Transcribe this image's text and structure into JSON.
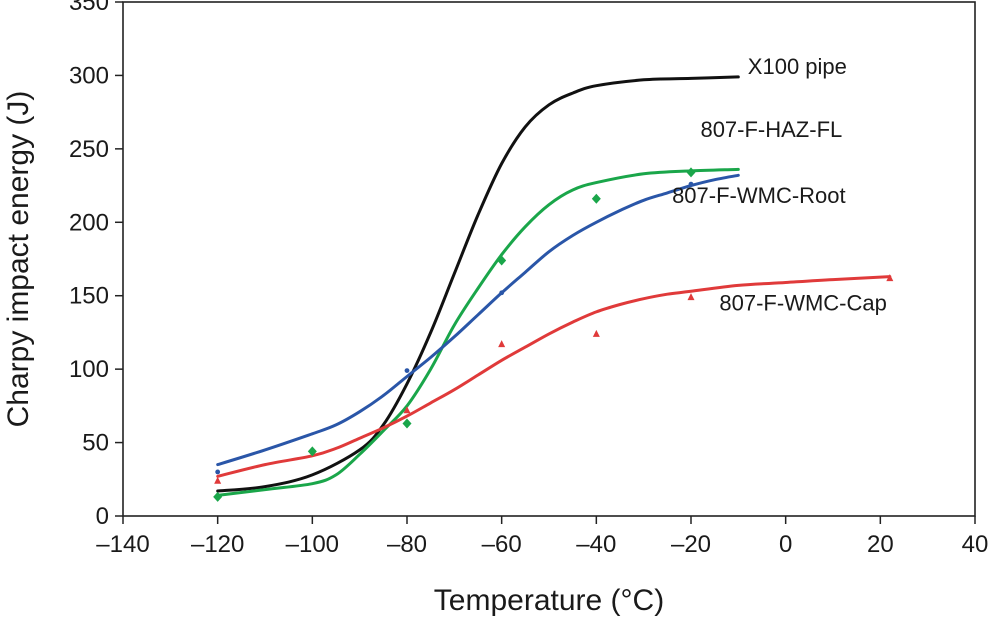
{
  "chart_data": {
    "type": "line",
    "title": "",
    "xlabel": "Temperature (°C)",
    "ylabel": "Charpy impact energy (J)",
    "xlim": [
      -140,
      40
    ],
    "ylim": [
      0,
      350
    ],
    "xticks": [
      -140,
      -120,
      -100,
      -80,
      -60,
      -40,
      -20,
      0,
      20,
      40
    ],
    "yticks": [
      0,
      50,
      100,
      150,
      200,
      250,
      300,
      350
    ],
    "xtick_labels": [
      "–140",
      "–120",
      "–100",
      "–80",
      "–60",
      "–40",
      "–20",
      "0",
      "20",
      "40"
    ],
    "ytick_labels": [
      "0",
      "50",
      "100",
      "150",
      "200",
      "250",
      "300",
      "350"
    ],
    "grid": false,
    "series": [
      {
        "name": "X100 pipe",
        "color": "#111111",
        "marker": "none",
        "label_at": [
          -8,
          301
        ],
        "curve": [
          [
            -120,
            17
          ],
          [
            -110,
            20
          ],
          [
            -100,
            28
          ],
          [
            -90,
            45
          ],
          [
            -85,
            62
          ],
          [
            -80,
            90
          ],
          [
            -75,
            125
          ],
          [
            -70,
            165
          ],
          [
            -65,
            205
          ],
          [
            -60,
            240
          ],
          [
            -55,
            265
          ],
          [
            -50,
            280
          ],
          [
            -45,
            288
          ],
          [
            -40,
            293
          ],
          [
            -30,
            297
          ],
          [
            -20,
            298
          ],
          [
            -10,
            299
          ]
        ],
        "points": []
      },
      {
        "name": "807-F-HAZ-FL",
        "color": "#1aa64a",
        "marker": "diamond",
        "label_at": [
          -18,
          258
        ],
        "curve": [
          [
            -120,
            14
          ],
          [
            -110,
            18
          ],
          [
            -100,
            22
          ],
          [
            -95,
            28
          ],
          [
            -90,
            42
          ],
          [
            -85,
            58
          ],
          [
            -80,
            75
          ],
          [
            -75,
            100
          ],
          [
            -70,
            130
          ],
          [
            -65,
            155
          ],
          [
            -60,
            178
          ],
          [
            -55,
            197
          ],
          [
            -50,
            212
          ],
          [
            -45,
            222
          ],
          [
            -40,
            227
          ],
          [
            -30,
            233
          ],
          [
            -20,
            235
          ],
          [
            -10,
            236
          ]
        ],
        "points": [
          [
            -120,
            13
          ],
          [
            -100,
            44
          ],
          [
            -80,
            63
          ],
          [
            -60,
            174
          ],
          [
            -40,
            216
          ],
          [
            -20,
            234
          ]
        ]
      },
      {
        "name": "807-F-WMC-Root",
        "color": "#2a56a8",
        "marker": "dot",
        "label_at": [
          -24,
          213
        ],
        "curve": [
          [
            -120,
            35
          ],
          [
            -110,
            45
          ],
          [
            -100,
            56
          ],
          [
            -95,
            62
          ],
          [
            -90,
            71
          ],
          [
            -85,
            82
          ],
          [
            -80,
            95
          ],
          [
            -75,
            108
          ],
          [
            -70,
            122
          ],
          [
            -65,
            137
          ],
          [
            -60,
            152
          ],
          [
            -55,
            166
          ],
          [
            -50,
            180
          ],
          [
            -45,
            191
          ],
          [
            -40,
            200
          ],
          [
            -35,
            208
          ],
          [
            -30,
            215
          ],
          [
            -25,
            220
          ],
          [
            -20,
            225
          ],
          [
            -15,
            229
          ],
          [
            -10,
            232
          ]
        ],
        "points": [
          [
            -120,
            30
          ],
          [
            -80,
            99
          ],
          [
            -60,
            152
          ],
          [
            -20,
            226
          ]
        ]
      },
      {
        "name": "807-F-WMC-Cap",
        "color": "#e03a3a",
        "marker": "triangle",
        "label_at": [
          -14,
          140
        ],
        "curve": [
          [
            -120,
            27
          ],
          [
            -110,
            35
          ],
          [
            -100,
            41
          ],
          [
            -95,
            46
          ],
          [
            -90,
            53
          ],
          [
            -85,
            60
          ],
          [
            -80,
            68
          ],
          [
            -75,
            77
          ],
          [
            -70,
            86
          ],
          [
            -65,
            96
          ],
          [
            -60,
            106
          ],
          [
            -55,
            115
          ],
          [
            -50,
            124
          ],
          [
            -45,
            132
          ],
          [
            -40,
            139
          ],
          [
            -35,
            144
          ],
          [
            -30,
            148
          ],
          [
            -25,
            151
          ],
          [
            -20,
            153
          ],
          [
            -10,
            157
          ],
          [
            0,
            159
          ],
          [
            10,
            161
          ],
          [
            22,
            163
          ]
        ],
        "points": [
          [
            -120,
            24
          ],
          [
            -80,
            72
          ],
          [
            -60,
            117
          ],
          [
            -40,
            124
          ],
          [
            -20,
            149
          ],
          [
            22,
            162
          ]
        ]
      }
    ]
  }
}
